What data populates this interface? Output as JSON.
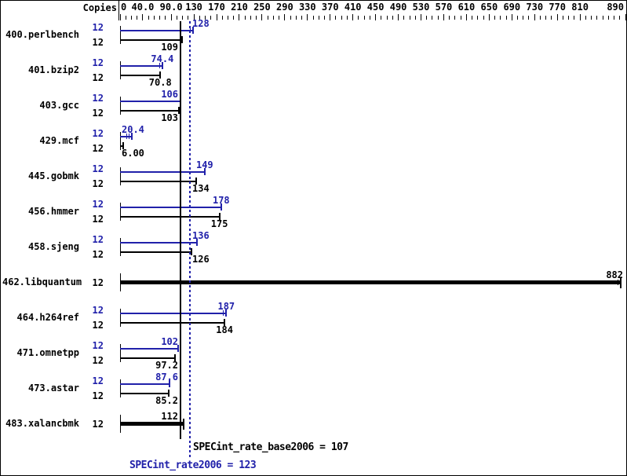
{
  "chart_data": {
    "type": "bar",
    "orientation": "horizontal",
    "copies_header": "Copies",
    "axis": {
      "xlim": [
        0,
        890
      ],
      "minor_tick_step": 10,
      "labels": [
        {
          "value": 0,
          "text": "0"
        },
        {
          "value": 40,
          "text": "40.0"
        },
        {
          "value": 90,
          "text": "90.0"
        },
        {
          "value": 130,
          "text": "130"
        },
        {
          "value": 170,
          "text": "170"
        },
        {
          "value": 210,
          "text": "210"
        },
        {
          "value": 250,
          "text": "250"
        },
        {
          "value": 290,
          "text": "290"
        },
        {
          "value": 330,
          "text": "330"
        },
        {
          "value": 370,
          "text": "370"
        },
        {
          "value": 410,
          "text": "410"
        },
        {
          "value": 450,
          "text": "450"
        },
        {
          "value": 490,
          "text": "490"
        },
        {
          "value": 530,
          "text": "530"
        },
        {
          "value": 570,
          "text": "570"
        },
        {
          "value": 610,
          "text": "610"
        },
        {
          "value": 650,
          "text": "650"
        },
        {
          "value": 690,
          "text": "690"
        },
        {
          "value": 730,
          "text": "730"
        },
        {
          "value": 770,
          "text": "770"
        },
        {
          "value": 810,
          "text": "810"
        },
        {
          "value": 890,
          "text": "890"
        }
      ]
    },
    "series_legend": [
      {
        "name": "peak (SPECint_rate2006)",
        "color": "#2121aa"
      },
      {
        "name": "base (SPECint_rate_base2006)",
        "color": "#000000"
      }
    ],
    "benchmarks": [
      {
        "name": "400.perlbench",
        "copies": "12",
        "peak": 128,
        "peak_text": "128",
        "base": 109,
        "base_text": "109",
        "peak_cap": "double"
      },
      {
        "name": "401.bzip2",
        "copies": "12",
        "peak": 74.4,
        "peak_text": "74.4",
        "base": 70.8,
        "base_text": "70.8",
        "peak_cap": "double"
      },
      {
        "name": "403.gcc",
        "copies": "12",
        "peak": 106,
        "peak_text": "106",
        "base": 103,
        "base_text": "103"
      },
      {
        "name": "429.mcf",
        "copies": "12",
        "peak": 20.4,
        "peak_text": "20.4",
        "base": 6.0,
        "base_text": "6.00",
        "peak_cap": "triple"
      },
      {
        "name": "445.gobmk",
        "copies": "12",
        "peak": 149,
        "peak_text": "149",
        "base": 134,
        "base_text": "134"
      },
      {
        "name": "456.hmmer",
        "copies": "12",
        "peak": 178,
        "peak_text": "178",
        "base": 175,
        "base_text": "175"
      },
      {
        "name": "458.sjeng",
        "copies": "12",
        "peak": 136,
        "peak_text": "136",
        "base": 126,
        "base_text": "126"
      },
      {
        "name": "462.libquantum",
        "copies": "12",
        "single_bar": true,
        "peak": 882,
        "base": 882,
        "base_text": "882",
        "base_cap": "double"
      },
      {
        "name": "464.h264ref",
        "copies": "12",
        "peak": 187,
        "peak_text": "187",
        "base": 184,
        "base_text": "184",
        "peak_cap": "double"
      },
      {
        "name": "471.omnetpp",
        "copies": "12",
        "peak": 102,
        "peak_text": "102",
        "base": 97.2,
        "base_text": "97.2"
      },
      {
        "name": "473.astar",
        "copies": "12",
        "peak": 87.6,
        "peak_text": "87.6",
        "base": 85.2,
        "base_text": "85.2"
      },
      {
        "name": "483.xalancbmk",
        "copies": "12",
        "single_bar": true,
        "peak": 112,
        "base": 112,
        "base_text": "112"
      }
    ],
    "reference_lines": [
      {
        "value": 107,
        "style": "solid",
        "color": "#000000"
      },
      {
        "value": 123,
        "style": "dotted",
        "color": "#2121aa"
      }
    ],
    "summary": {
      "base_text": "SPECint_rate_base2006 = 107",
      "base_value": 107,
      "peak_text": "SPECint_rate2006 = 123",
      "peak_value": 123
    },
    "colors": {
      "peak": "#2121aa",
      "base": "#000000",
      "background": "#ffffff",
      "frame": "#000000"
    }
  }
}
